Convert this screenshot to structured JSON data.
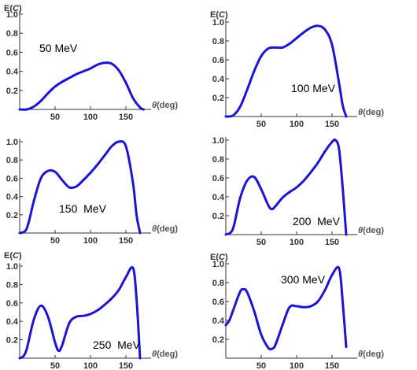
{
  "chart_data": [
    {
      "type": "line",
      "ylabel": "E(C)",
      "xlabel": "θ(deg)",
      "annotation": "50 MeV",
      "ylim": [
        0,
        1.0
      ],
      "xlim": [
        0,
        180
      ],
      "xticks": [
        50,
        100,
        150
      ],
      "yticks": [
        0.2,
        0.4,
        0.6,
        0.8,
        1.0
      ],
      "x": [
        0,
        10,
        20,
        30,
        40,
        50,
        60,
        70,
        80,
        90,
        100,
        110,
        120,
        130,
        140,
        150,
        160,
        170,
        175
      ],
      "y": [
        0,
        0,
        0.03,
        0.09,
        0.17,
        0.24,
        0.29,
        0.33,
        0.37,
        0.4,
        0.43,
        0.47,
        0.49,
        0.48,
        0.41,
        0.28,
        0.12,
        0.02,
        0
      ]
    },
    {
      "type": "line",
      "ylabel": "E(C)",
      "xlabel": "θ(deg)",
      "annotation": "100 MeV",
      "ylim": [
        0,
        1.0
      ],
      "xlim": [
        0,
        180
      ],
      "xticks": [
        50,
        100,
        150
      ],
      "yticks": [
        0.2,
        0.4,
        0.6,
        0.8,
        1.0
      ],
      "x": [
        0,
        10,
        20,
        30,
        40,
        50,
        60,
        70,
        80,
        90,
        100,
        110,
        120,
        130,
        140,
        150,
        160,
        165,
        170
      ],
      "y": [
        0,
        0.01,
        0.1,
        0.28,
        0.48,
        0.64,
        0.72,
        0.73,
        0.73,
        0.77,
        0.83,
        0.89,
        0.94,
        0.96,
        0.92,
        0.76,
        0.35,
        0.12,
        0
      ]
    },
    {
      "type": "line",
      "ylabel": "",
      "xlabel": "θ(deg)",
      "annotation": "150  MeV",
      "ylim": [
        0,
        1.0
      ],
      "xlim": [
        0,
        180
      ],
      "xticks": [
        50,
        100,
        150
      ],
      "yticks": [
        0.2,
        0.4,
        0.6,
        0.8,
        1.0
      ],
      "x": [
        0,
        10,
        20,
        30,
        40,
        50,
        60,
        70,
        80,
        90,
        100,
        110,
        120,
        130,
        140,
        150,
        160,
        165,
        170
      ],
      "y": [
        0,
        0.05,
        0.35,
        0.6,
        0.68,
        0.67,
        0.58,
        0.5,
        0.51,
        0.58,
        0.66,
        0.75,
        0.85,
        0.95,
        1.0,
        0.95,
        0.55,
        0.2,
        0
      ]
    },
    {
      "type": "line",
      "ylabel": "",
      "xlabel": "θ(deg)",
      "annotation": "200  MeV",
      "ylim": [
        0,
        1.0
      ],
      "xlim": [
        0,
        180
      ],
      "xticks": [
        50,
        100,
        150
      ],
      "yticks": [
        0.2,
        0.4,
        0.6,
        0.8,
        1.0
      ],
      "x": [
        0,
        10,
        20,
        30,
        40,
        50,
        60,
        65,
        70,
        80,
        90,
        100,
        110,
        120,
        130,
        140,
        150,
        155,
        160,
        165,
        170
      ],
      "y": [
        0,
        0.06,
        0.38,
        0.57,
        0.61,
        0.48,
        0.31,
        0.27,
        0.3,
        0.39,
        0.45,
        0.5,
        0.57,
        0.66,
        0.76,
        0.88,
        0.98,
        1.0,
        0.9,
        0.5,
        0
      ]
    },
    {
      "type": "line",
      "ylabel": "E(C)",
      "xlabel": "θ(deg)",
      "annotation": "250  MeV",
      "ylim": [
        0,
        1.0
      ],
      "xlim": [
        0,
        180
      ],
      "xticks": [
        50,
        100,
        150
      ],
      "yticks": [
        0.2,
        0.4,
        0.6,
        0.8,
        1.0
      ],
      "x": [
        0,
        5,
        10,
        20,
        30,
        40,
        50,
        55,
        60,
        70,
        80,
        90,
        100,
        110,
        120,
        130,
        140,
        150,
        160,
        165,
        170
      ],
      "y": [
        0,
        0.02,
        0.1,
        0.42,
        0.57,
        0.45,
        0.17,
        0.08,
        0.14,
        0.38,
        0.45,
        0.46,
        0.48,
        0.52,
        0.58,
        0.65,
        0.74,
        0.88,
        0.98,
        0.65,
        0
      ]
    },
    {
      "type": "line",
      "ylabel": "E(C)",
      "xlabel": "θ(deg)",
      "annotation": "300 MeV",
      "ylim": [
        0,
        1.0
      ],
      "xlim": [
        0,
        180
      ],
      "xticks": [
        50,
        100,
        150
      ],
      "yticks": [
        0.2,
        0.4,
        0.6,
        0.8,
        1.0
      ],
      "x": [
        0,
        5,
        10,
        20,
        25,
        30,
        40,
        50,
        60,
        65,
        70,
        80,
        90,
        100,
        110,
        120,
        130,
        140,
        150,
        160,
        165,
        170
      ],
      "y": [
        0.35,
        0.4,
        0.5,
        0.7,
        0.73,
        0.7,
        0.5,
        0.25,
        0.11,
        0.1,
        0.14,
        0.35,
        0.54,
        0.55,
        0.54,
        0.55,
        0.6,
        0.72,
        0.88,
        0.95,
        0.6,
        0.12
      ]
    }
  ]
}
